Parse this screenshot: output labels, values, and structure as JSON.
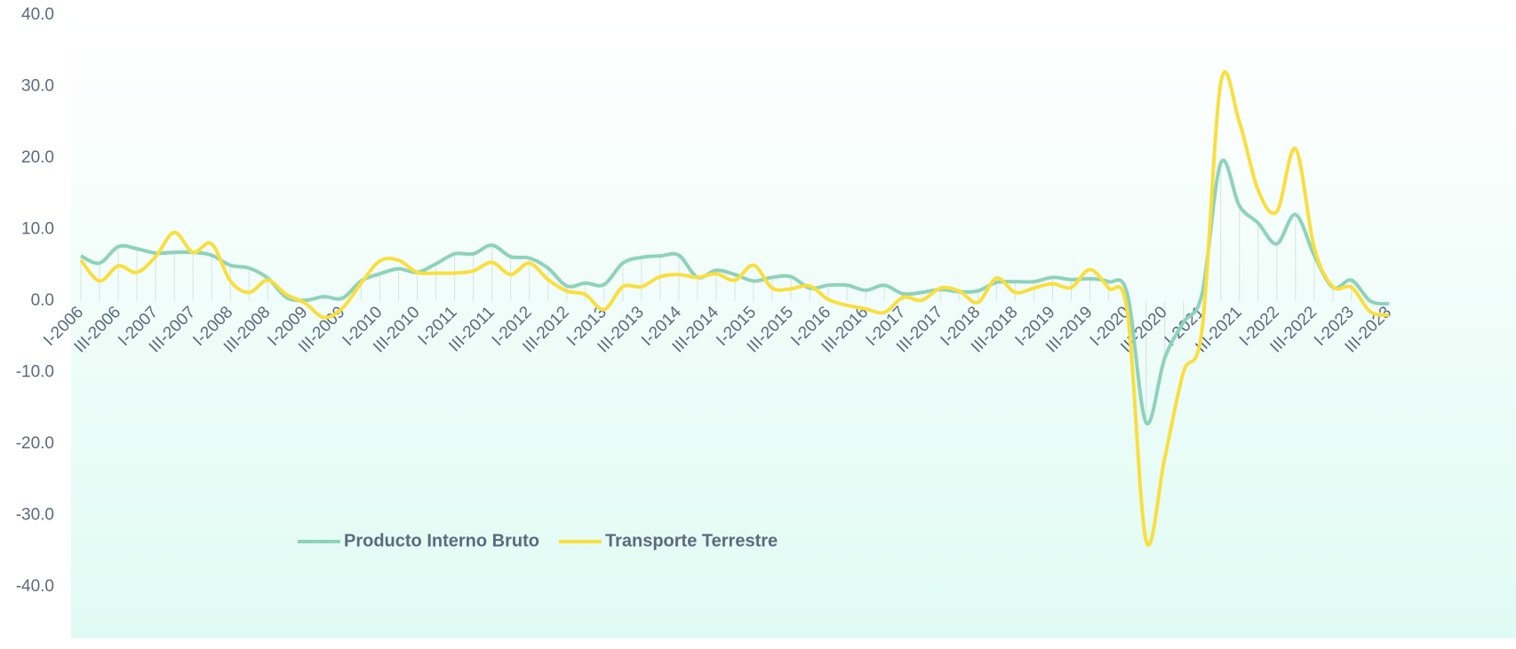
{
  "chart_data": {
    "type": "line",
    "categories": [
      "I-2006",
      null,
      "III-2006",
      null,
      "I-2007",
      null,
      "III-2007",
      null,
      "I-2008",
      null,
      "III-2008",
      null,
      "I-2009",
      null,
      "III-2009",
      null,
      "I-2010",
      null,
      "III-2010",
      null,
      "I-2011",
      null,
      "III-2011",
      null,
      "I-2012",
      null,
      "III-2012",
      null,
      "I-2013",
      null,
      "III-2013",
      null,
      "I-2014",
      null,
      "III-2014",
      null,
      "I-2015",
      null,
      "III-2015",
      null,
      "I-2016",
      null,
      "III-2016",
      null,
      "I-2017",
      null,
      "III-2017",
      null,
      "I-2018",
      null,
      "III-2018",
      null,
      "I-2019",
      null,
      "III-2019",
      null,
      "I-2020",
      null,
      "III-2020",
      null,
      "I-2021",
      null,
      "III-2021",
      null,
      "I-2022",
      null,
      "III-2022",
      null,
      "I-2023",
      null,
      "III-2023"
    ],
    "series": [
      {
        "name": "Producto Interno Bruto",
        "color": "#8ed2ba",
        "values": [
          6.3,
          5.3,
          7.6,
          7.3,
          6.7,
          6.8,
          6.8,
          6.4,
          5.0,
          4.6,
          3.2,
          0.5,
          0.1,
          0.6,
          0.4,
          2.8,
          3.8,
          4.5,
          4.0,
          5.2,
          6.6,
          6.6,
          7.8,
          6.2,
          6.0,
          4.6,
          2.1,
          2.5,
          2.3,
          5.3,
          6.1,
          6.3,
          6.4,
          3.3,
          4.3,
          3.7,
          2.8,
          3.3,
          3.4,
          1.8,
          2.2,
          2.2,
          1.5,
          2.2,
          1.0,
          1.2,
          1.6,
          1.3,
          1.4,
          2.6,
          2.7,
          2.7,
          3.3,
          3.0,
          3.1,
          2.7,
          1.0,
          -17.0,
          -8.0,
          -3.0,
          1.0,
          19.3,
          13.3,
          10.9,
          8.0,
          12.1,
          6.4,
          1.9,
          2.9,
          0.0,
          -0.4
        ]
      },
      {
        "name": "Transporte Terrestre",
        "color": "#f9df3e",
        "values": [
          5.7,
          2.8,
          4.9,
          4.0,
          6.2,
          9.6,
          6.8,
          8.0,
          2.8,
          1.2,
          2.9,
          0.9,
          -0.3,
          -2.3,
          -1.0,
          2.5,
          5.6,
          5.7,
          4.0,
          3.9,
          3.9,
          4.2,
          5.4,
          3.7,
          5.3,
          3.0,
          1.4,
          0.9,
          -1.2,
          2.0,
          2.0,
          3.4,
          3.7,
          3.3,
          3.8,
          2.9,
          5.0,
          1.8,
          1.7,
          2.1,
          0.2,
          -0.6,
          -1.1,
          -1.6,
          0.5,
          0.1,
          1.8,
          1.4,
          -0.2,
          3.2,
          1.2,
          1.8,
          2.4,
          1.9,
          4.4,
          1.8,
          -1.5,
          -33.5,
          -22.0,
          -10.0,
          -4.0,
          30.5,
          25.0,
          15.5,
          12.5,
          21.3,
          7.5,
          2.0,
          1.9,
          -1.5,
          -2.0
        ]
      }
    ],
    "ylim": [
      -40,
      40
    ],
    "yticks": [
      {
        "value": -40,
        "label": "-40.0"
      },
      {
        "value": -30,
        "label": "-30.0"
      },
      {
        "value": -20,
        "label": "-20.0"
      },
      {
        "value": -10,
        "label": "-10.0"
      },
      {
        "value": 0,
        "label": "0.0"
      },
      {
        "value": 10,
        "label": "10.0"
      },
      {
        "value": 20,
        "label": "20.0"
      },
      {
        "value": 30,
        "label": "30.0"
      },
      {
        "value": 40,
        "label": "40.0"
      }
    ],
    "legend": "bottom-left"
  }
}
